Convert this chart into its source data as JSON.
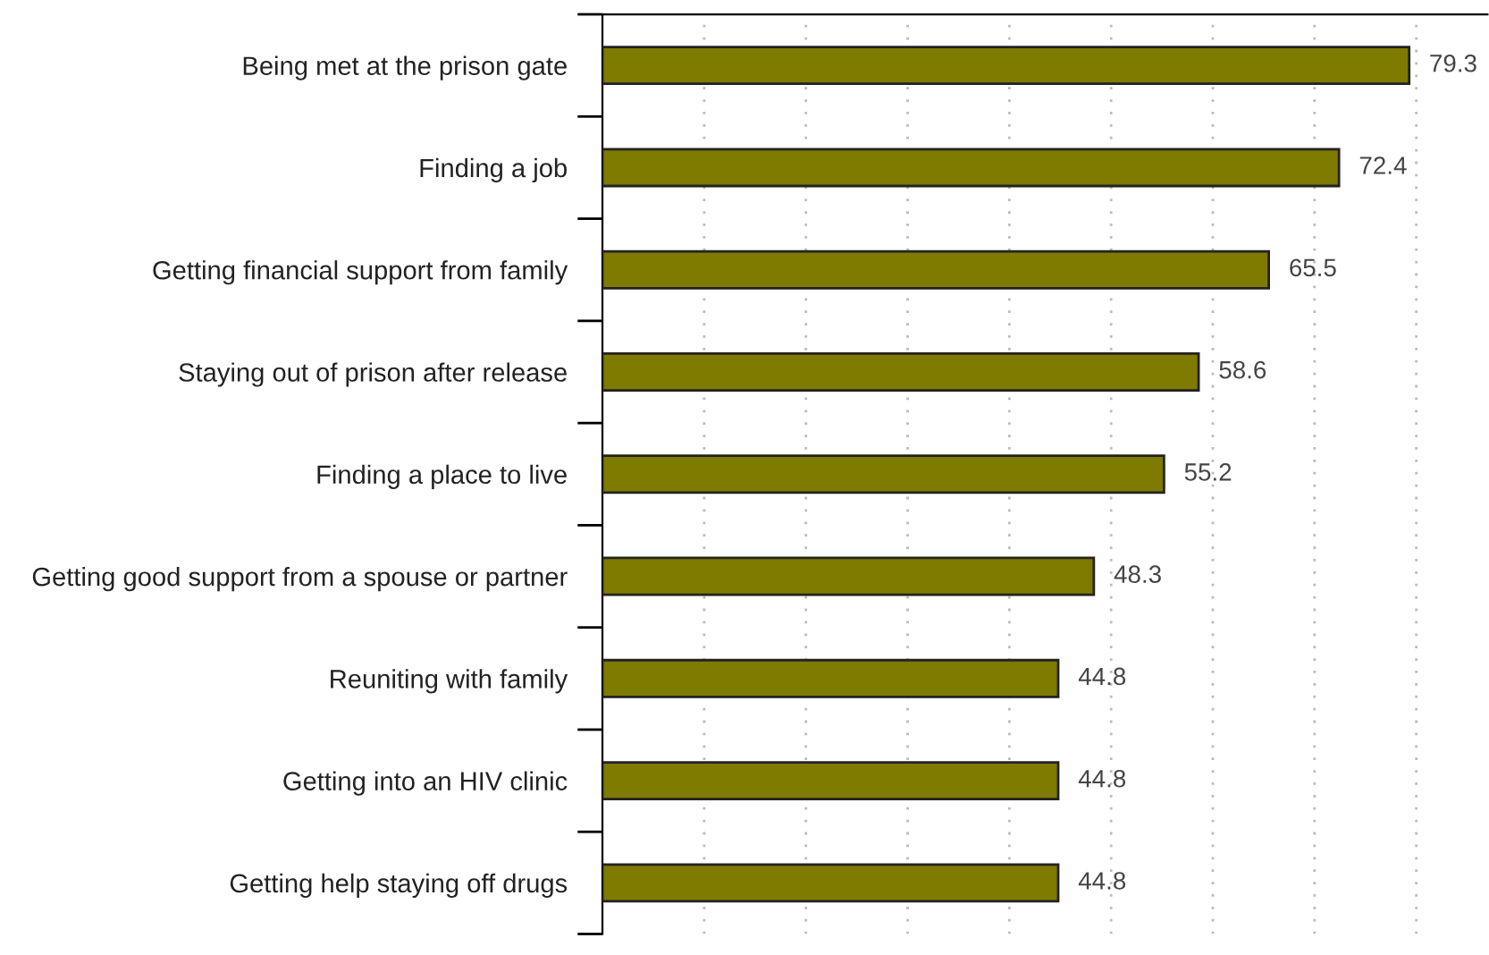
{
  "chart_data": {
    "type": "bar",
    "orientation": "horizontal",
    "categories": [
      "Being met at the prison gate",
      "Finding a job",
      "Getting financial support from family",
      "Staying out of prison after release",
      "Finding a place to live",
      "Getting good support from a spouse or partner",
      "Reuniting with family",
      "Getting into an HIV clinic",
      "Getting help staying off drugs"
    ],
    "values": [
      79.3,
      72.4,
      65.5,
      58.6,
      55.2,
      48.3,
      44.8,
      44.8,
      44.8
    ],
    "color": "#7f7a00",
    "xlim": [
      0,
      87
    ],
    "xticks": [
      {
        "value": 10,
        "label": null
      },
      {
        "value": 20,
        "label": null
      },
      {
        "value": 30,
        "label": null
      },
      {
        "value": 40,
        "label": null
      },
      {
        "value": 50,
        "label": null
      },
      {
        "value": 60,
        "label": null
      },
      {
        "value": 70,
        "label": null
      },
      {
        "value": 80,
        "label": null
      }
    ],
    "grid": "x",
    "data_labels": true,
    "tick_labels": "y"
  }
}
